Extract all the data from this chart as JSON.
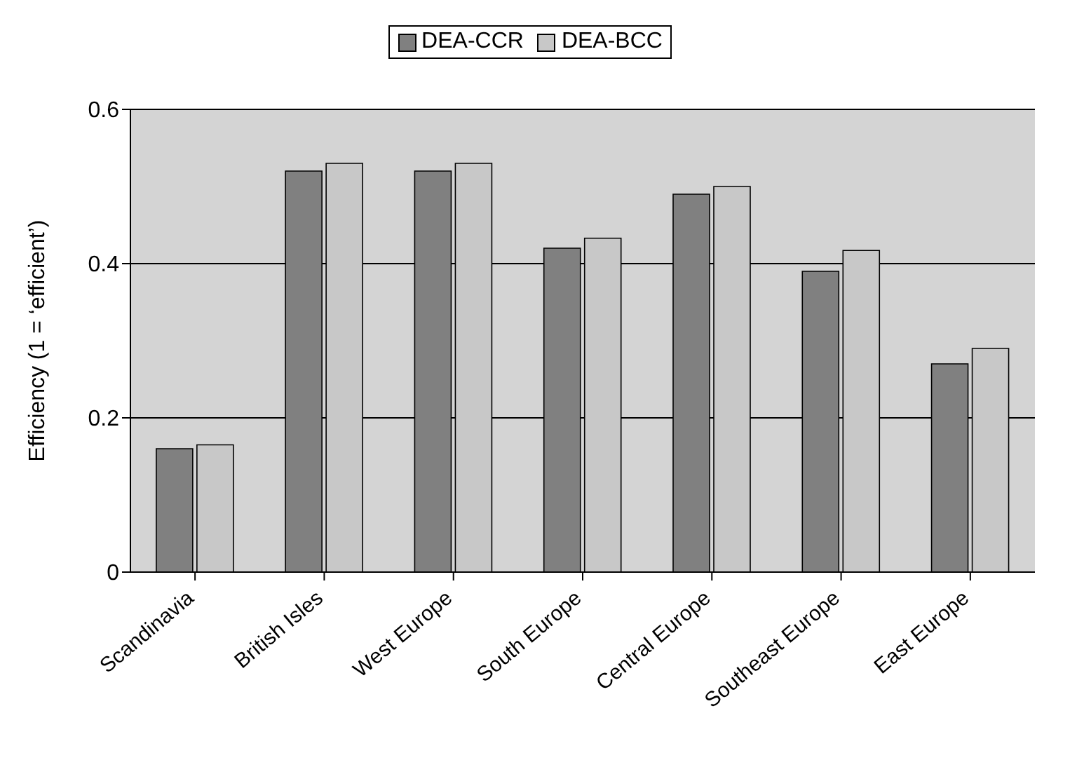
{
  "chart_data": {
    "type": "bar",
    "ylabel": "Efficiency (1 = ‘efficient’)",
    "categories": [
      "Scandinavia",
      "British Isles",
      "West Europe",
      "South Europe",
      "Central Europe",
      "Southeast Europe",
      "East Europe"
    ],
    "series": [
      {
        "name": "DEA-CCR",
        "color": "#808080",
        "values": [
          0.16,
          0.52,
          0.52,
          0.42,
          0.49,
          0.39,
          0.27
        ]
      },
      {
        "name": "DEA-BCC",
        "color": "#c8c8c8",
        "values": [
          0.165,
          0.53,
          0.53,
          0.433,
          0.5,
          0.417,
          0.29
        ]
      }
    ],
    "ylim": [
      0,
      0.6
    ],
    "yticks": [
      0,
      0.2,
      0.4,
      0.6
    ],
    "grid": "y",
    "legend": "top"
  }
}
